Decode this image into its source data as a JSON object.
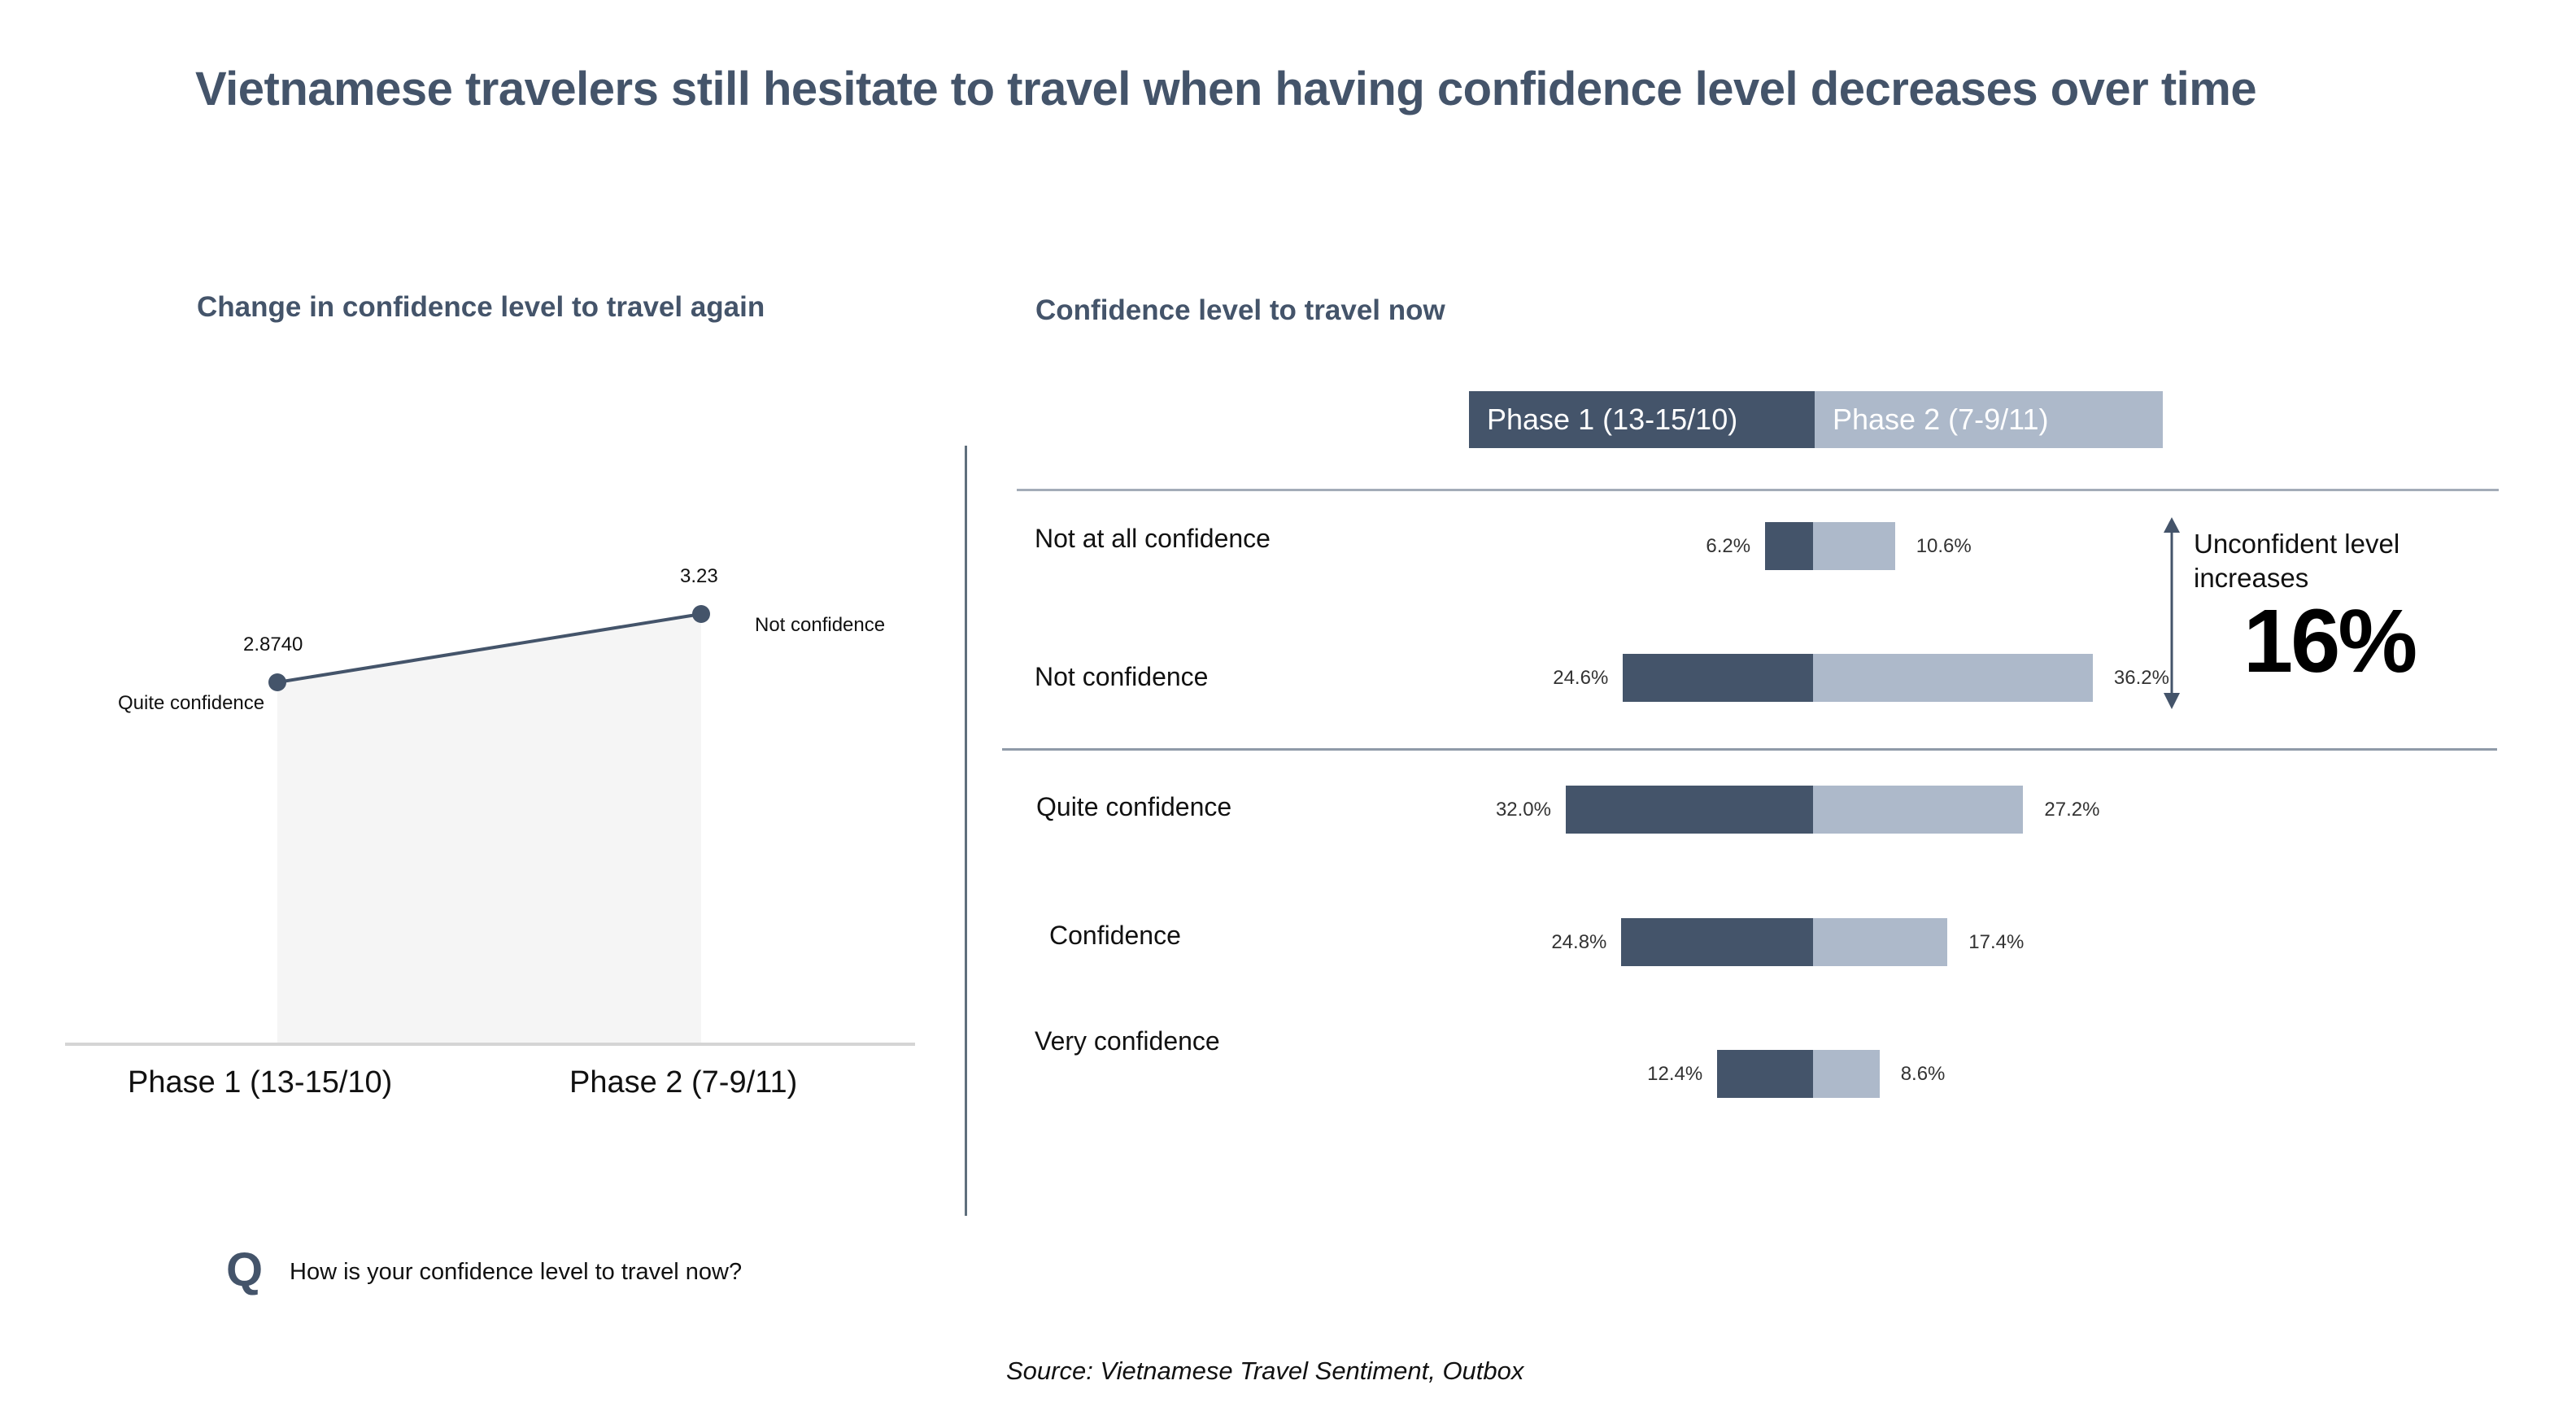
{
  "title": "Vietnamese travelers still hesitate to travel when having confidence level decreases over time",
  "colors": {
    "phase1": "#44546a",
    "phase2": "#adb9ca",
    "area": "#f5f5f5",
    "heading": "#44546a"
  },
  "chart_data": [
    {
      "type": "line",
      "title": "Change in confidence level to travel again",
      "categories": [
        "Phase 1 (13-15/10)",
        "Phase 2 (7-9/11)"
      ],
      "values": [
        2.874,
        3.23
      ],
      "value_labels": [
        "2.8740",
        "3.23"
      ],
      "point_annotations": [
        "Quite confidence",
        "Not confidence"
      ],
      "ylim": [
        0,
        3.6
      ],
      "grid": false
    },
    {
      "type": "bar",
      "orientation": "horizontal-diverging",
      "title": "Confidence level to travel now",
      "categories": [
        "Not at all confidence",
        "Not confidence",
        "Quite confidence",
        "Confidence",
        "Very confidence"
      ],
      "series": [
        {
          "name": "Phase 1 (13-15/10)",
          "values": [
            6.2,
            24.6,
            32.0,
            24.8,
            12.4
          ],
          "labels": [
            "6.2%",
            "24.6%",
            "32.0%",
            "24.8%",
            "12.4%"
          ]
        },
        {
          "name": "Phase 2 (7-9/11)",
          "values": [
            10.6,
            36.2,
            27.2,
            17.4,
            8.6
          ],
          "labels": [
            "10.6%",
            "36.2%",
            "27.2%",
            "17.4%",
            "8.6%"
          ]
        }
      ],
      "legend": "top",
      "annotation": {
        "text": "Unconfident level increases",
        "value": "16%"
      }
    }
  ],
  "question": {
    "icon": "Q",
    "text": "How is your confidence level to travel now?"
  },
  "source": "Source: Vietnamese Travel Sentiment, Outbox"
}
